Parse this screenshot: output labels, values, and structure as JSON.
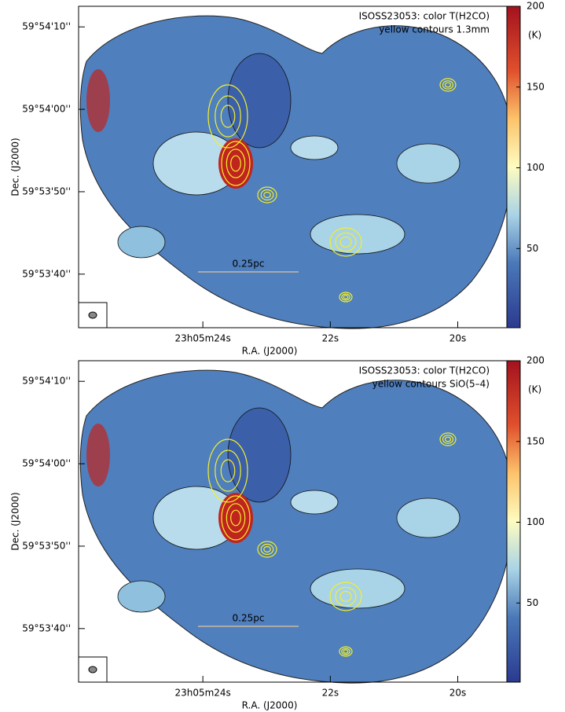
{
  "chart_data": [
    {
      "type": "map",
      "annotation_lines": [
        "ISOSS23053: color T(H2CO)",
        "yellow contours 1.3mm"
      ],
      "scale_bar": "0.25pc",
      "xlabel": "R.A. (J2000)",
      "ylabel": "Dec. (J2000)",
      "xlim": [
        25.95,
        19.02
      ],
      "xticks": [
        {
          "value": 24,
          "label": "23h05m24s"
        },
        {
          "value": 22,
          "label": "22s"
        },
        {
          "value": 20,
          "label": "20s"
        }
      ],
      "ylim": [
        33.5,
        72.5
      ],
      "yticks": [
        {
          "value": 40,
          "label": "59°53'40''"
        },
        {
          "value": 50,
          "label": "59°53'50''"
        },
        {
          "value": 60,
          "label": "59°54'00''"
        },
        {
          "value": 70,
          "label": "59°54'10''"
        }
      ],
      "colorbar_label": "(K)",
      "clim": [
        1,
        200
      ],
      "cticks": [
        50,
        100,
        150,
        200
      ]
    },
    {
      "type": "map",
      "annotation_lines": [
        "ISOSS23053: color T(H2CO)",
        "yellow contours SiO(5–4)"
      ],
      "scale_bar": "0.25pc",
      "xlabel": "R.A. (J2000)",
      "ylabel": "Dec. (J2000)",
      "xlim": [
        25.95,
        19.02
      ],
      "xticks": [
        {
          "value": 24,
          "label": "23h05m24s"
        },
        {
          "value": 22,
          "label": "22s"
        },
        {
          "value": 20,
          "label": "20s"
        }
      ],
      "ylim": [
        33.5,
        72.5
      ],
      "yticks": [
        {
          "value": 40,
          "label": "59°53'40''"
        },
        {
          "value": 50,
          "label": "59°53'50''"
        },
        {
          "value": 60,
          "label": "59°54'00''"
        },
        {
          "value": 70,
          "label": "59°54'10''"
        }
      ],
      "colorbar_label": "(K)",
      "clim": [
        1,
        200
      ],
      "cticks": [
        50,
        100,
        150,
        200
      ]
    }
  ]
}
